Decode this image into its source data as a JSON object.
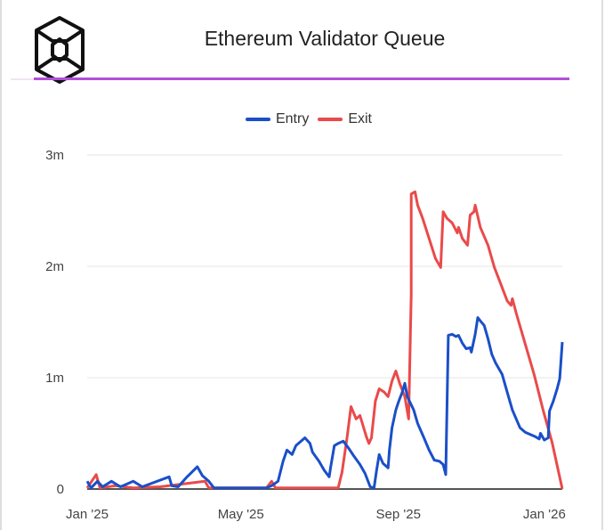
{
  "header": {
    "title": "Ethereum Validator Queue",
    "logo_icon": "cube-hexagon-logo"
  },
  "colors": {
    "entry": "#1a4fc9",
    "exit": "#ea4a4a",
    "accent": "#b24fd6"
  },
  "chart_data": {
    "type": "line",
    "title": "Ethereum Validator Queue",
    "xlabel": "",
    "ylabel": "",
    "x_unit": "days since Jan 1 2025",
    "xlim": [
      0,
      371
    ],
    "ylim": [
      0,
      3
    ],
    "y_unit": "millions",
    "grid": true,
    "legend_position": "top-center",
    "yticks": [
      {
        "value": 0,
        "label": "0"
      },
      {
        "value": 1,
        "label": "1m"
      },
      {
        "value": 2,
        "label": "2m"
      },
      {
        "value": 3,
        "label": "3m"
      }
    ],
    "xticks": [
      {
        "value": 0,
        "label": "Jan '25"
      },
      {
        "value": 120,
        "label": "May '25"
      },
      {
        "value": 243,
        "label": "Sep '25"
      },
      {
        "value": 357,
        "label": "Jan '26"
      }
    ],
    "series": [
      {
        "name": "Entry",
        "color": "#1a4fc9",
        "x": [
          0,
          3,
          8,
          12,
          19,
          26,
          36,
          43,
          64,
          66,
          71,
          78,
          86,
          90,
          95,
          99,
          140,
          144,
          149,
          153,
          156,
          160,
          163,
          167,
          170,
          174,
          176,
          181,
          185,
          189,
          190,
          193,
          196,
          200,
          204,
          208,
          213,
          217,
          221,
          224,
          226,
          228,
          231,
          235,
          236,
          238,
          241,
          243,
          246,
          248,
          250,
          255,
          258,
          263,
          267,
          271,
          275,
          278,
          280,
          282,
          285,
          288,
          290,
          293,
          296,
          299,
          300,
          303,
          305,
          307,
          310,
          313,
          316,
          319,
          324,
          328,
          332,
          335,
          338,
          342,
          346,
          350,
          353,
          354,
          357,
          360,
          361,
          364,
          367,
          369,
          371
        ],
        "y": [
          0.07,
          0.01,
          0.07,
          0.02,
          0.07,
          0.02,
          0.07,
          0.02,
          0.11,
          0.03,
          0.02,
          0.11,
          0.2,
          0.12,
          0.07,
          0.01,
          0.01,
          0.03,
          0.07,
          0.25,
          0.35,
          0.31,
          0.39,
          0.43,
          0.46,
          0.41,
          0.33,
          0.25,
          0.17,
          0.11,
          0.19,
          0.39,
          0.41,
          0.43,
          0.37,
          0.3,
          0.22,
          0.14,
          0.02,
          0.01,
          0.17,
          0.31,
          0.23,
          0.19,
          0.35,
          0.55,
          0.71,
          0.78,
          0.87,
          0.95,
          0.83,
          0.71,
          0.59,
          0.46,
          0.35,
          0.26,
          0.25,
          0.22,
          0.13,
          1.38,
          1.39,
          1.37,
          1.38,
          1.31,
          1.26,
          1.27,
          1.23,
          1.39,
          1.54,
          1.51,
          1.47,
          1.35,
          1.21,
          1.13,
          1.03,
          0.87,
          0.71,
          0.63,
          0.55,
          0.51,
          0.49,
          0.47,
          0.45,
          0.5,
          0.44,
          0.46,
          0.7,
          0.79,
          0.9,
          0.99,
          1.32
        ]
      },
      {
        "name": "Exit",
        "color": "#ea4a4a",
        "x": [
          0,
          7,
          10,
          22,
          36,
          57,
          92,
          95,
          140,
          144,
          147,
          196,
          199,
          203,
          206,
          210,
          213,
          218,
          220,
          222,
          225,
          228,
          232,
          235,
          238,
          241,
          244,
          248,
          251,
          253,
          253,
          256,
          258,
          262,
          272,
          276,
          278,
          281,
          285,
          289,
          290,
          293,
          297,
          299,
          302,
          303,
          307,
          313,
          318,
          322,
          328,
          331,
          332,
          335,
          349,
          356,
          363,
          371
        ],
        "y": [
          0.01,
          0.13,
          0.01,
          0.03,
          0.01,
          0.02,
          0.07,
          0.01,
          0.01,
          0.07,
          0.01,
          0.01,
          0.15,
          0.47,
          0.74,
          0.63,
          0.66,
          0.47,
          0.41,
          0.46,
          0.79,
          0.9,
          0.87,
          0.83,
          0.97,
          1.06,
          0.95,
          0.83,
          0.63,
          1.75,
          2.65,
          2.67,
          2.55,
          2.43,
          2.07,
          1.99,
          2.49,
          2.43,
          2.39,
          2.3,
          2.35,
          2.25,
          2.19,
          2.46,
          2.49,
          2.55,
          2.35,
          2.19,
          1.99,
          1.87,
          1.69,
          1.65,
          1.71,
          1.58,
          1.03,
          0.71,
          0.42,
          0
        ]
      }
    ]
  }
}
